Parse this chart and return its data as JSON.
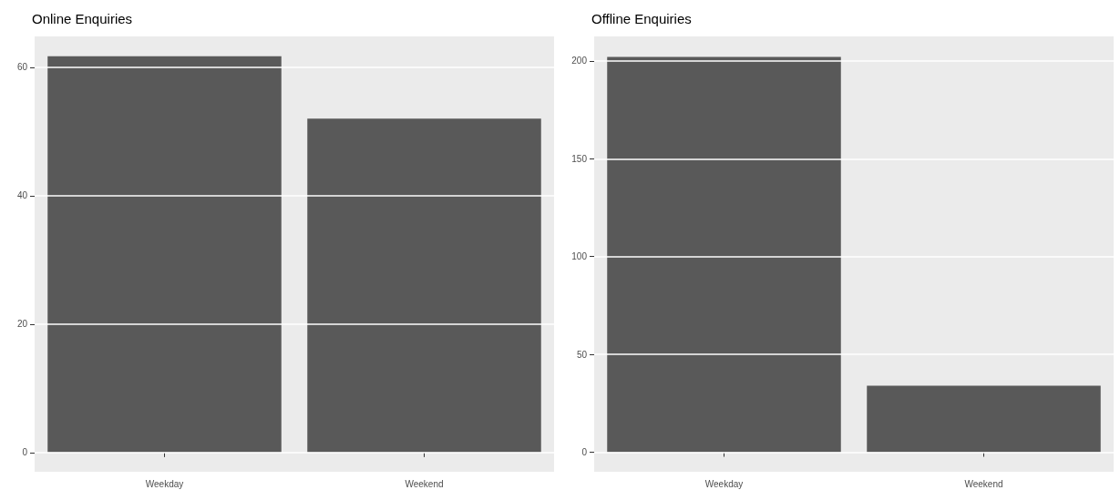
{
  "chart_data": [
    {
      "type": "bar",
      "title": "Online Enquiries",
      "categories": [
        "Weekday",
        "Weekend"
      ],
      "values": [
        61.7,
        52
      ],
      "color": "#595959",
      "ylim": [
        -3,
        64.8
      ],
      "yticks": [
        0,
        20,
        40,
        60
      ],
      "grid": true
    },
    {
      "type": "bar",
      "title": "Offline Enquiries",
      "categories": [
        "Weekday",
        "Weekend"
      ],
      "values": [
        202,
        34
      ],
      "color": "#595959",
      "ylim": [
        -10,
        212.5
      ],
      "yticks": [
        0,
        50,
        100,
        150,
        200
      ],
      "grid": true
    }
  ]
}
